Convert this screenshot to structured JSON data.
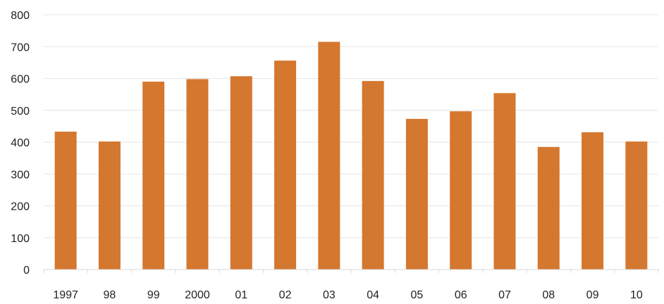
{
  "chart_data": {
    "type": "bar",
    "categories": [
      "1997",
      "98",
      "99",
      "2000",
      "01",
      "02",
      "03",
      "04",
      "05",
      "06",
      "07",
      "08",
      "09",
      "10"
    ],
    "values": [
      433,
      402,
      590,
      598,
      607,
      656,
      715,
      592,
      473,
      497,
      554,
      385,
      431,
      402
    ],
    "title": "",
    "xlabel": "",
    "ylabel": "",
    "ylim": [
      0,
      800
    ],
    "yticks": [
      "0",
      "100",
      "200",
      "300",
      "400",
      "500",
      "600",
      "700",
      "800"
    ],
    "grid": true,
    "bar_color": "#D4772F",
    "grid_color": "#E6E6E6"
  }
}
